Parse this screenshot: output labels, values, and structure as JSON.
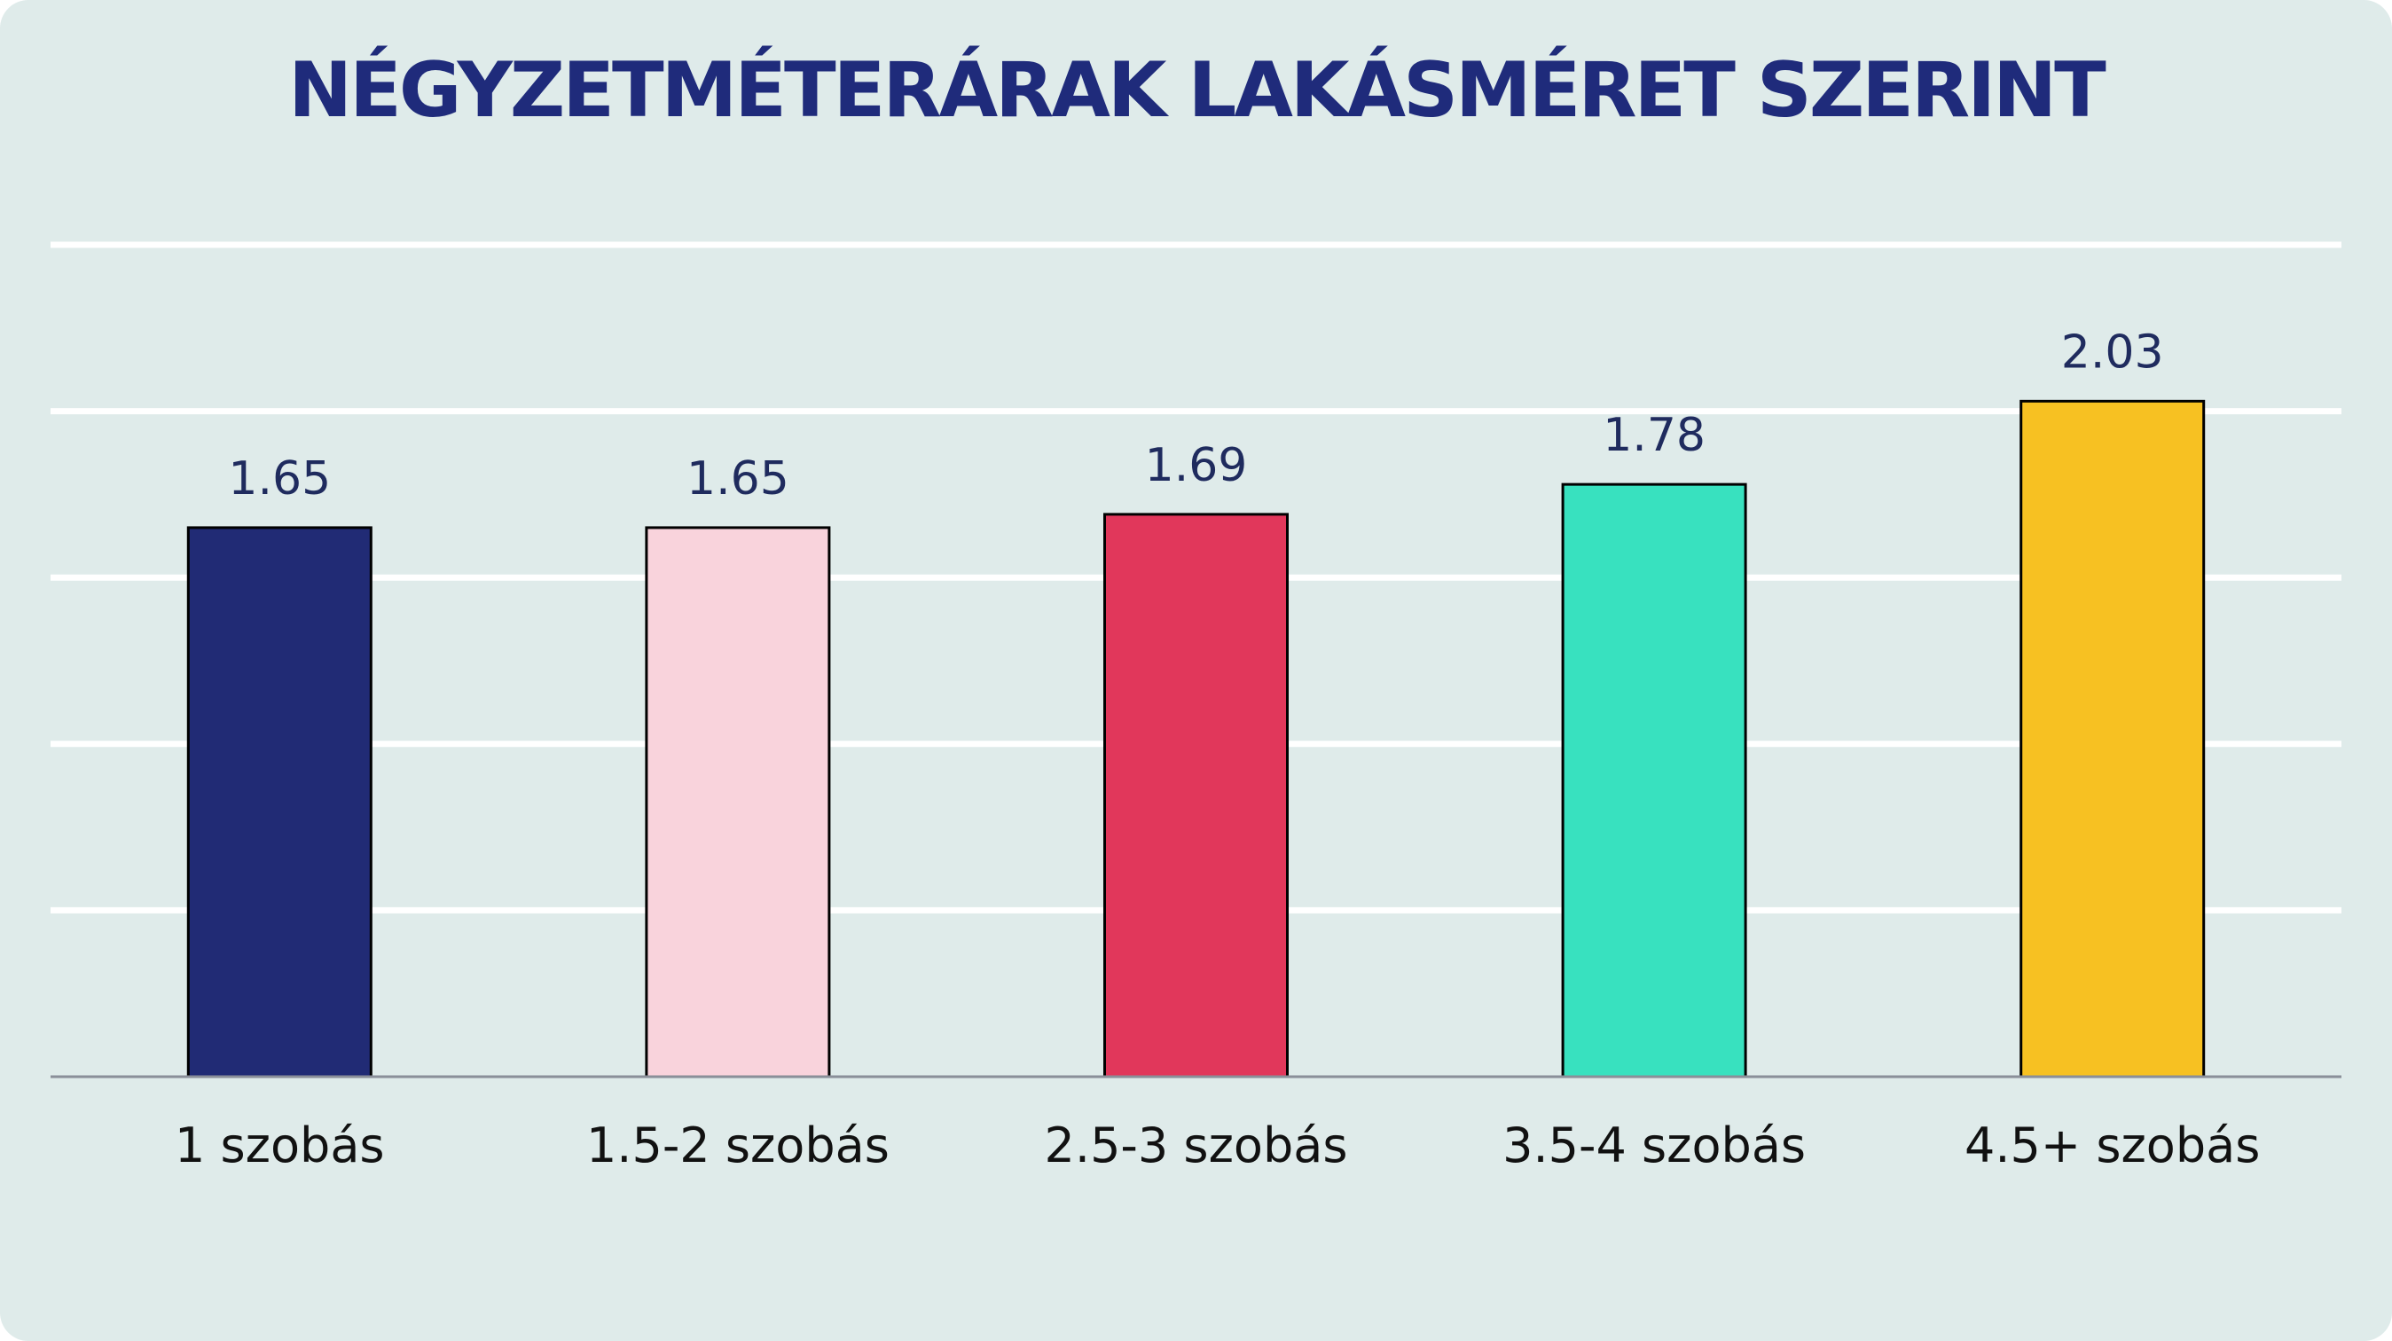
{
  "chart_data": {
    "type": "bar",
    "title": "NÉGYZETMÉTERÁRAK LAKÁSMÉRET SZERINT",
    "categories": [
      "1 szobás",
      "1.5-2 szobás",
      "2.5-3 szobás",
      "3.5-4 szobás",
      "4.5+ szobás"
    ],
    "values": [
      1.65,
      1.65,
      1.69,
      1.78,
      2.03
    ],
    "value_labels": [
      "1.65",
      "1.65",
      "1.69",
      "1.78",
      "2.03"
    ],
    "bar_colors": [
      "#212b75",
      "#f9d3dc",
      "#e1375b",
      "#38e1bf",
      "#f7c122"
    ],
    "ylim": [
      0,
      2.5
    ],
    "grid": true,
    "legend": "none",
    "colors": {
      "background": "#dfebea",
      "title": "#1f2b7b",
      "gridline": "#ffffff",
      "axis": "#8a8f99"
    }
  }
}
